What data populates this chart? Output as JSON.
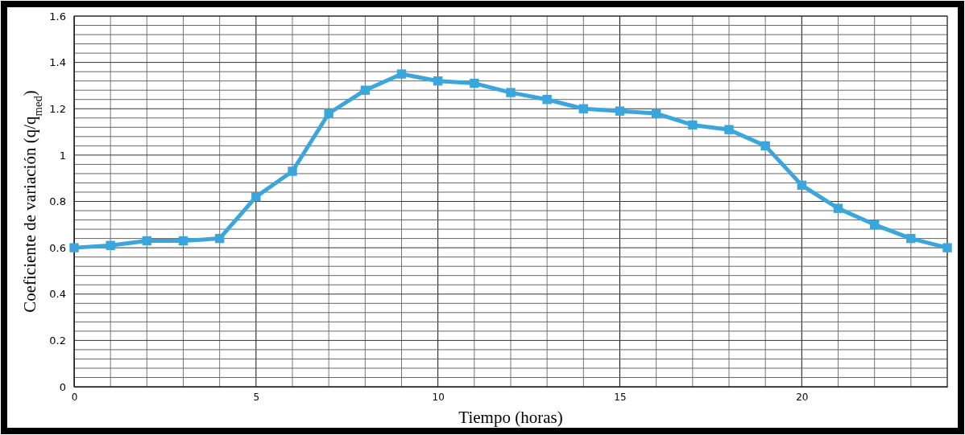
{
  "chart_data": {
    "type": "line",
    "xlabel": "Tiempo (horas)",
    "ylabel": "Coeficiente de variación (q/q$_{med}$)",
    "x": [
      0,
      1,
      2,
      3,
      4,
      5,
      6,
      7,
      8,
      9,
      10,
      11,
      12,
      13,
      14,
      15,
      16,
      17,
      18,
      19,
      20,
      21,
      22,
      23,
      24
    ],
    "series": [
      {
        "color": "#3ba6dc",
        "values": [
          0.6,
          0.61,
          0.63,
          0.63,
          0.64,
          0.82,
          0.93,
          1.18,
          1.28,
          1.35,
          1.32,
          1.31,
          1.27,
          1.24,
          1.2,
          1.19,
          1.18,
          1.13,
          1.11,
          1.04,
          0.87,
          0.77,
          0.7,
          0.64,
          0.6
        ]
      }
    ],
    "xlim": [
      0,
      24
    ],
    "xticks": [
      0,
      {
        "value": 1,
        "label": null
      },
      {
        "value": 2,
        "label": null
      },
      {
        "value": 3,
        "label": null
      },
      {
        "value": 4,
        "label": null
      },
      5,
      {
        "value": 6,
        "label": null
      },
      {
        "value": 7,
        "label": null
      },
      {
        "value": 8,
        "label": null
      },
      {
        "value": 9,
        "label": null
      },
      10,
      {
        "value": 11,
        "label": null
      },
      {
        "value": 12,
        "label": null
      },
      {
        "value": 13,
        "label": null
      },
      {
        "value": 14,
        "label": null
      },
      15,
      {
        "value": 16,
        "label": null
      },
      {
        "value": 17,
        "label": null
      },
      {
        "value": 18,
        "label": null
      },
      {
        "value": 19,
        "label": null
      },
      20,
      {
        "value": 21,
        "label": null
      },
      {
        "value": 22,
        "label": null
      },
      {
        "value": 23,
        "label": null
      },
      {
        "value": 24,
        "label": null
      }
    ],
    "ylim": [
      0,
      1.6
    ],
    "yticks": [
      0,
      {
        "value": 0.04,
        "label": null
      },
      {
        "value": 0.08,
        "label": null
      },
      {
        "value": 0.12,
        "label": null
      },
      {
        "value": 0.16,
        "label": null
      },
      0.2,
      {
        "value": 0.24,
        "label": null
      },
      {
        "value": 0.28,
        "label": null
      },
      {
        "value": 0.32,
        "label": null
      },
      {
        "value": 0.36,
        "label": null
      },
      0.4,
      {
        "value": 0.44,
        "label": null
      },
      {
        "value": 0.48,
        "label": null
      },
      {
        "value": 0.52,
        "label": null
      },
      {
        "value": 0.56,
        "label": null
      },
      0.6,
      {
        "value": 0.64,
        "label": null
      },
      {
        "value": 0.68,
        "label": null
      },
      {
        "value": 0.72,
        "label": null
      },
      {
        "value": 0.76,
        "label": null
      },
      0.8,
      {
        "value": 0.84,
        "label": null
      },
      {
        "value": 0.88,
        "label": null
      },
      {
        "value": 0.92,
        "label": null
      },
      {
        "value": 0.96,
        "label": null
      },
      1,
      {
        "value": 1.04,
        "label": null
      },
      {
        "value": 1.08,
        "label": null
      },
      {
        "value": 1.12,
        "label": null
      },
      {
        "value": 1.16,
        "label": null
      },
      1.2,
      {
        "value": 1.24,
        "label": null
      },
      {
        "value": 1.28,
        "label": null
      },
      {
        "value": 1.32,
        "label": null
      },
      {
        "value": 1.36,
        "label": null
      },
      1.4,
      {
        "value": 1.44,
        "label": null
      },
      {
        "value": 1.48,
        "label": null
      },
      {
        "value": 1.52,
        "label": null
      },
      {
        "value": 1.56,
        "label": null
      },
      1.6
    ],
    "grid": true,
    "marker": "square",
    "line_style": "solid"
  }
}
